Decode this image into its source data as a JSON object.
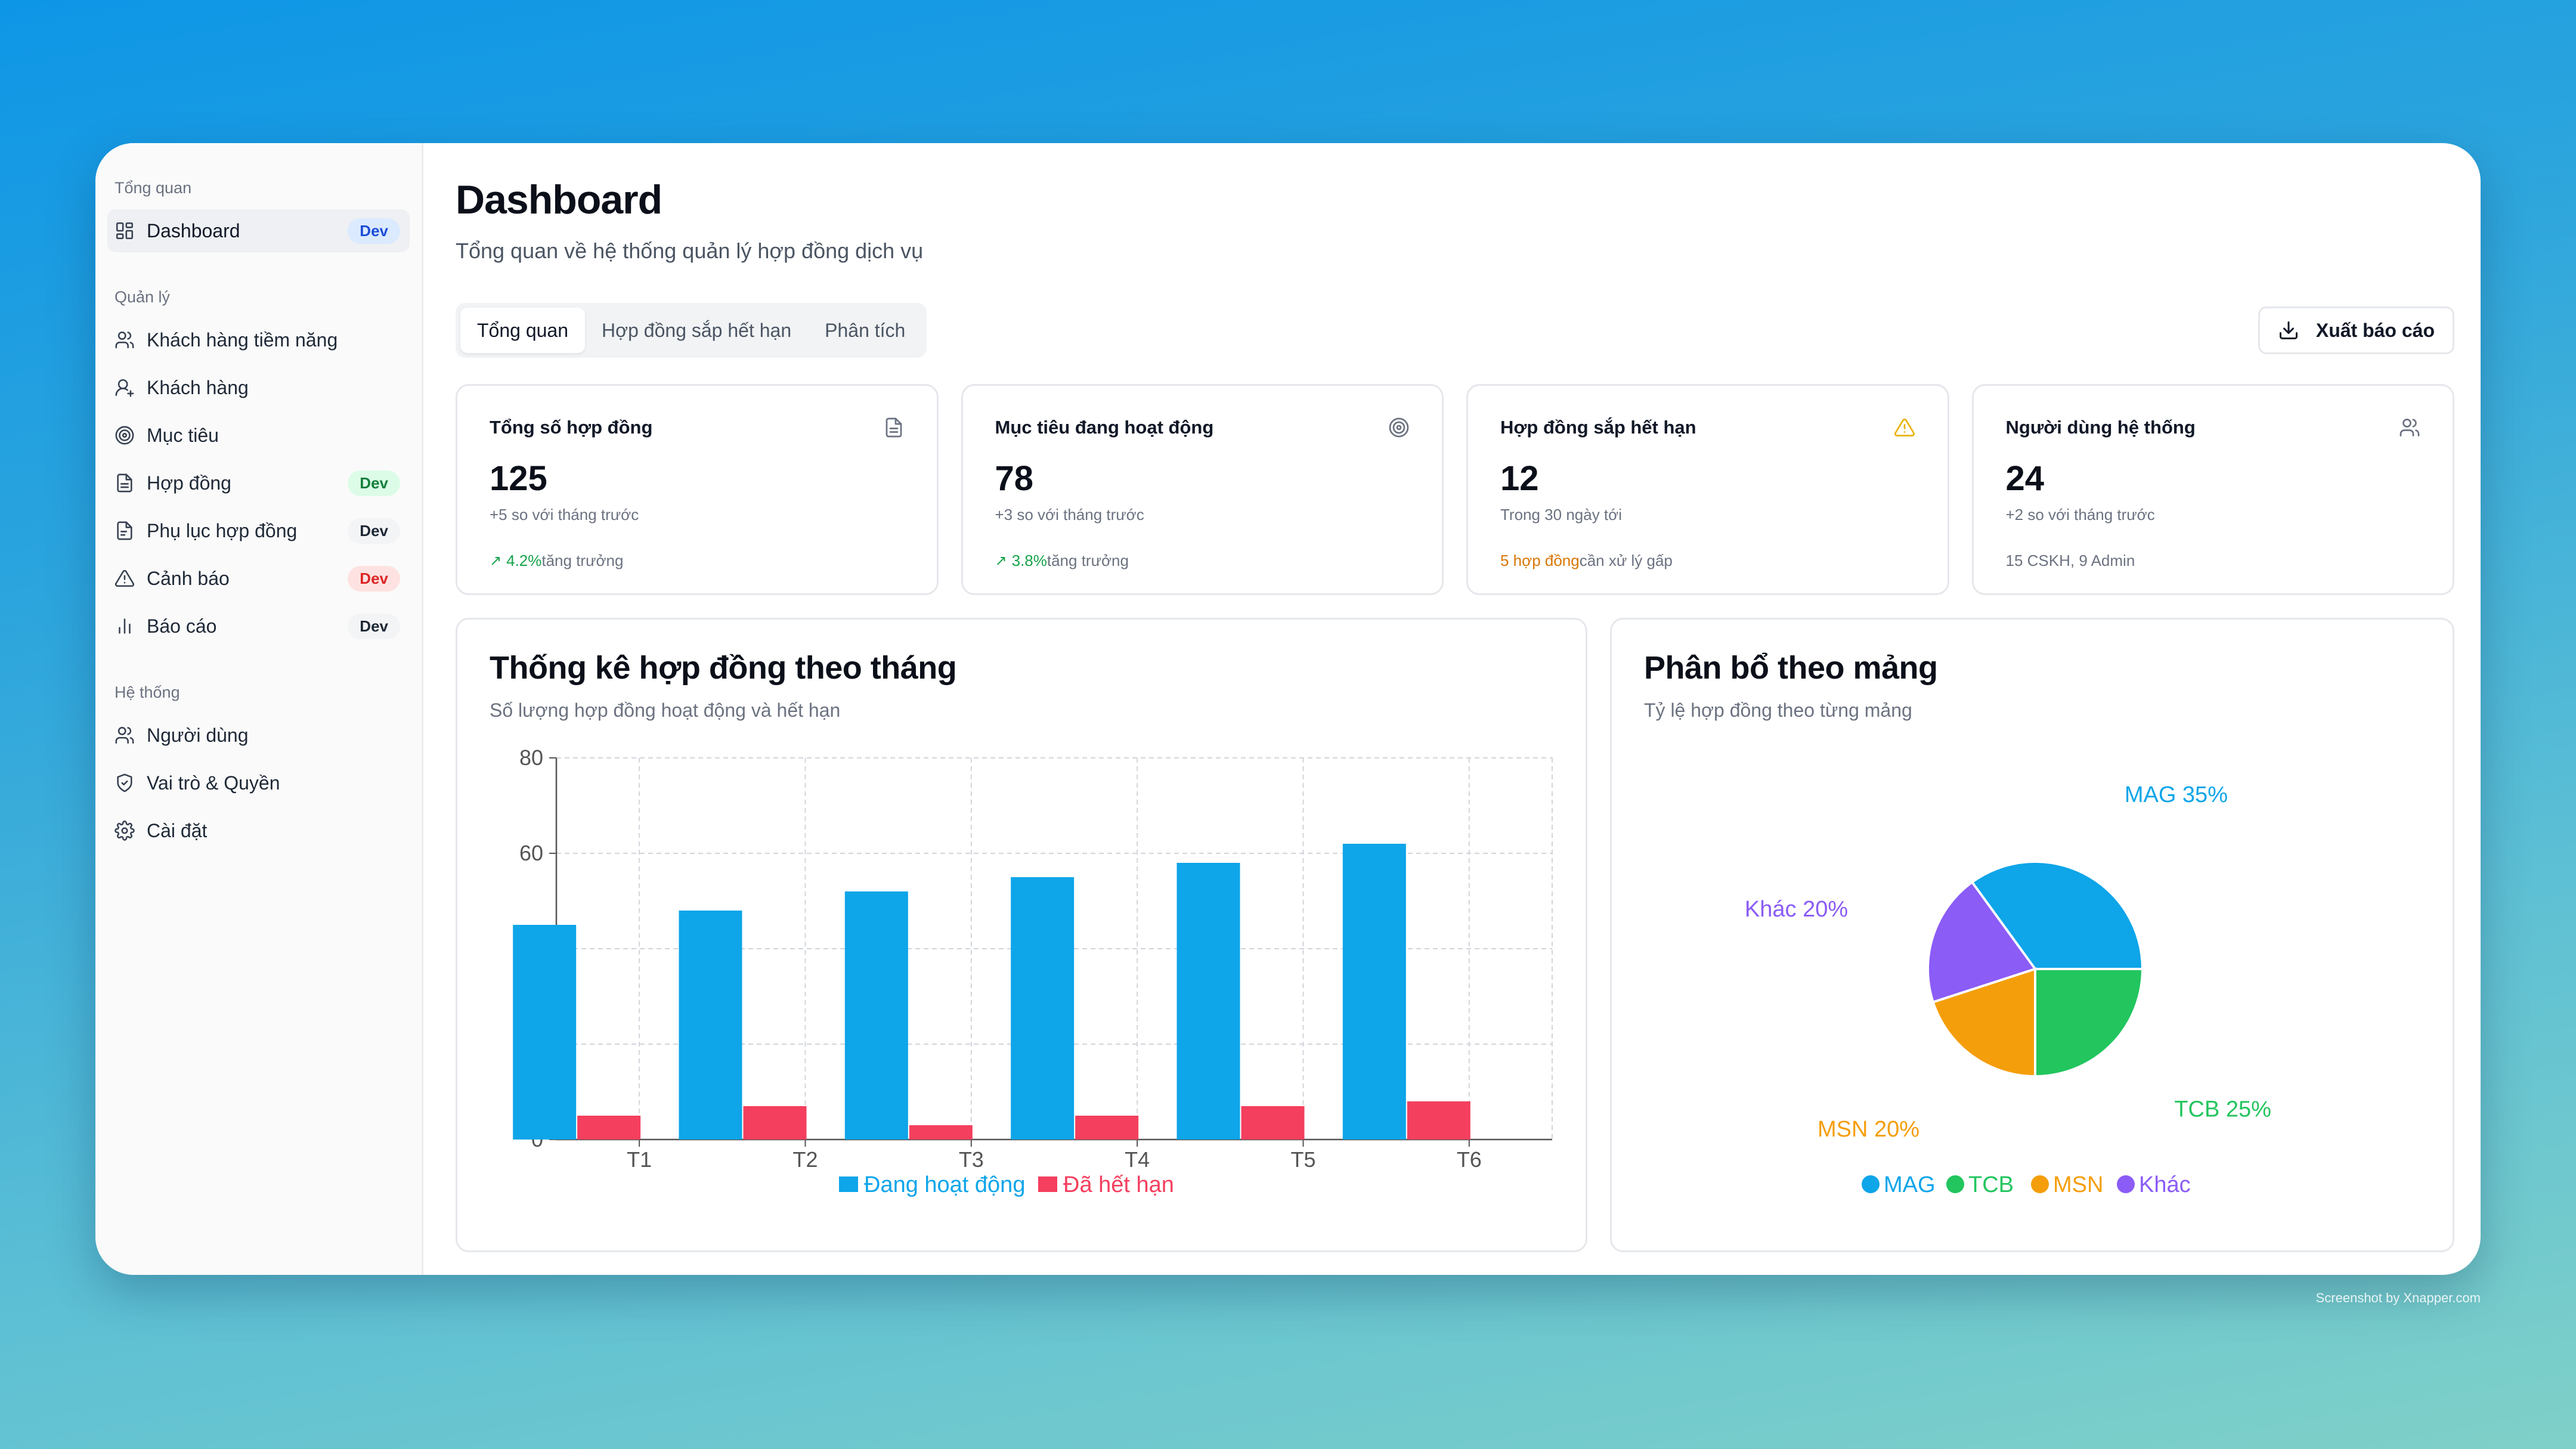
{
  "sidebar": {
    "groups": [
      {
        "title": "Tổng quan",
        "items": [
          {
            "label": "Dashboard",
            "icon": "grid-icon",
            "badge": "Dev",
            "badge_color": "blue",
            "active": true
          }
        ]
      },
      {
        "title": "Quản lý",
        "items": [
          {
            "label": "Khách hàng tiềm năng",
            "icon": "users-icon"
          },
          {
            "label": "Khách hàng",
            "icon": "user-icon"
          },
          {
            "label": "Mục tiêu",
            "icon": "target-icon"
          },
          {
            "label": "Hợp đồng",
            "icon": "file-icon",
            "badge": "Dev",
            "badge_color": "green"
          },
          {
            "label": "Phụ lục hợp đồng",
            "icon": "file-text-icon",
            "badge": "Dev",
            "badge_color": "gray"
          },
          {
            "label": "Cảnh báo",
            "icon": "alert-triangle-icon",
            "badge": "Dev",
            "badge_color": "red"
          },
          {
            "label": "Báo cáo",
            "icon": "bar-chart-icon",
            "badge": "Dev",
            "badge_color": "gray"
          }
        ]
      },
      {
        "title": "Hệ thống",
        "items": [
          {
            "label": "Người dùng",
            "icon": "users-icon"
          },
          {
            "label": "Vai trò & Quyền",
            "icon": "shield-icon"
          },
          {
            "label": "Cài đặt",
            "icon": "gear-icon"
          }
        ]
      }
    ]
  },
  "header": {
    "title": "Dashboard",
    "subtitle": "Tổng quan về hệ thống quản lý hợp đồng dịch vụ"
  },
  "tabs": [
    "Tổng quan",
    "Hợp đồng sắp hết hạn",
    "Phân tích"
  ],
  "export_label": "Xuất báo cáo",
  "stats": [
    {
      "title": "Tổng số hợp đồng",
      "icon": "file-icon",
      "value": "125",
      "sub": "+5 so với tháng trước",
      "foot_highlight": "4.2%",
      "foot_text": "tăng trưởng",
      "foot_color": "green",
      "foot_arrow": true
    },
    {
      "title": "Mục tiêu đang hoạt động",
      "icon": "target-icon",
      "value": "78",
      "sub": "+3 so với tháng trước",
      "foot_highlight": "3.8%",
      "foot_text": "tăng trưởng",
      "foot_color": "green",
      "foot_arrow": true
    },
    {
      "title": "Hợp đồng sắp hết hạn",
      "icon": "alert-triangle-icon",
      "value": "12",
      "sub": "Trong 30 ngày tới",
      "foot_highlight": "5 hợp đồng",
      "foot_text": "cần xử lý gấp",
      "foot_color": "orange",
      "foot_arrow": false
    },
    {
      "title": "Người dùng hệ thống",
      "icon": "users-icon",
      "value": "24",
      "sub": "+2 so với tháng trước",
      "foot_highlight": "",
      "foot_text": "15 CSKH, 9 Admin",
      "foot_color": "gray",
      "foot_arrow": false
    }
  ],
  "colors": {
    "active": "#0ea5e9",
    "expired": "#f43f5e",
    "MAG": "#0ea5e9",
    "TCB": "#22c55e",
    "MSN": "#f59e0b",
    "Khac": "#8b5cf6",
    "warning_icon": "#eab308"
  },
  "chart_data": [
    {
      "type": "bar",
      "title": "Thống kê hợp đồng theo tháng",
      "subtitle": "Số lượng hợp đồng hoạt động và hết hạn",
      "categories": [
        "T1",
        "T2",
        "T3",
        "T4",
        "T5",
        "T6"
      ],
      "series": [
        {
          "name": "Đang hoạt động",
          "values": [
            45,
            48,
            52,
            55,
            58,
            62
          ]
        },
        {
          "name": "Đã hết hạn",
          "values": [
            5,
            7,
            3,
            5,
            7,
            8
          ]
        }
      ],
      "ylim": [
        0,
        80
      ],
      "yticks": [
        0,
        20,
        40,
        60,
        80
      ],
      "grid": true,
      "legend": "bottom"
    },
    {
      "type": "pie",
      "title": "Phân bổ theo mảng",
      "subtitle": "Tỷ lệ hợp đồng theo từng mảng",
      "slices": [
        {
          "name": "MAG",
          "value": 35,
          "label": "MAG 35%"
        },
        {
          "name": "Khác",
          "value": 20,
          "label": "Khác 20%"
        },
        {
          "name": "MSN",
          "value": 20,
          "label": "MSN 20%"
        },
        {
          "name": "TCB",
          "value": 25,
          "label": "TCB 25%"
        }
      ],
      "legend_order": [
        "MAG",
        "TCB",
        "MSN",
        "Khác"
      ],
      "legend": "bottom"
    }
  ],
  "watermark": "Screenshot by Xnapper.com"
}
